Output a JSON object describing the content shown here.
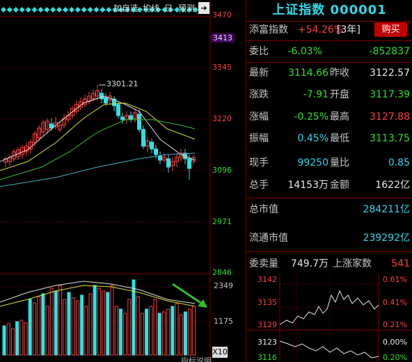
{
  "toolbar": {
    "add_label": "加自选",
    "ma_label": "均线",
    "period_label": "日",
    "forecast_label": "预测"
  },
  "chart": {
    "price_axis": [
      "3470",
      "3413",
      "3345",
      "3220",
      "3096",
      "2971",
      "2846"
    ],
    "vol_axis": [
      "2349",
      "1175"
    ],
    "vol_scale": "X10",
    "peak_label": "3301.21",
    "bottom_cut_text": "指标说明"
  },
  "quote": {
    "title": "上证指数 000001",
    "fortune_label": "添富指数",
    "fortune_value": "+54.26%",
    "fortune_period": "[3年]",
    "buy_label": "购买",
    "weibi_label": "委比",
    "weibi_pct": "-6.03%",
    "weibi_diff": "-852837",
    "latest_label": "最新",
    "latest_value": "3114.66",
    "prev_close_label": "昨收",
    "prev_close_value": "3122.57",
    "change_label": "涨跌",
    "change_value": "-7.91",
    "open_label": "开盘",
    "open_value": "3117.39",
    "change_pct_label": "涨幅",
    "change_pct_value": "-0.25%",
    "high_label": "最高",
    "high_value": "3127.88",
    "amplitude_label": "振幅",
    "amplitude_value": "0.45%",
    "low_label": "最低",
    "low_value": "3113.75",
    "current_vol_label": "现手",
    "current_vol_value": "99250",
    "vol_ratio_label": "量比",
    "vol_ratio_value": "0.85",
    "total_vol_label": "总手",
    "total_vol_value": "14153万",
    "amount_label": "金额",
    "amount_value": "1622亿",
    "total_cap_label": "总市值",
    "total_cap_value": "284211亿",
    "float_cap_label": "流通市值",
    "float_cap_value": "239292亿",
    "order_vol_label": "委卖量",
    "order_vol_value": "749.7万",
    "up_count_label": "上涨家数",
    "up_count_value": "541"
  },
  "mini": {
    "left_axis": [
      "3142",
      "3135",
      "3129",
      "3123",
      "3116"
    ],
    "right_axis": [
      "0.61%",
      "0.41%",
      "0.21%",
      "0.00%",
      "0.20%"
    ]
  },
  "colors": {
    "up": "#ff4040",
    "down": "#30e0e0",
    "accent": "#30d8e8",
    "frame": "#800000"
  }
}
